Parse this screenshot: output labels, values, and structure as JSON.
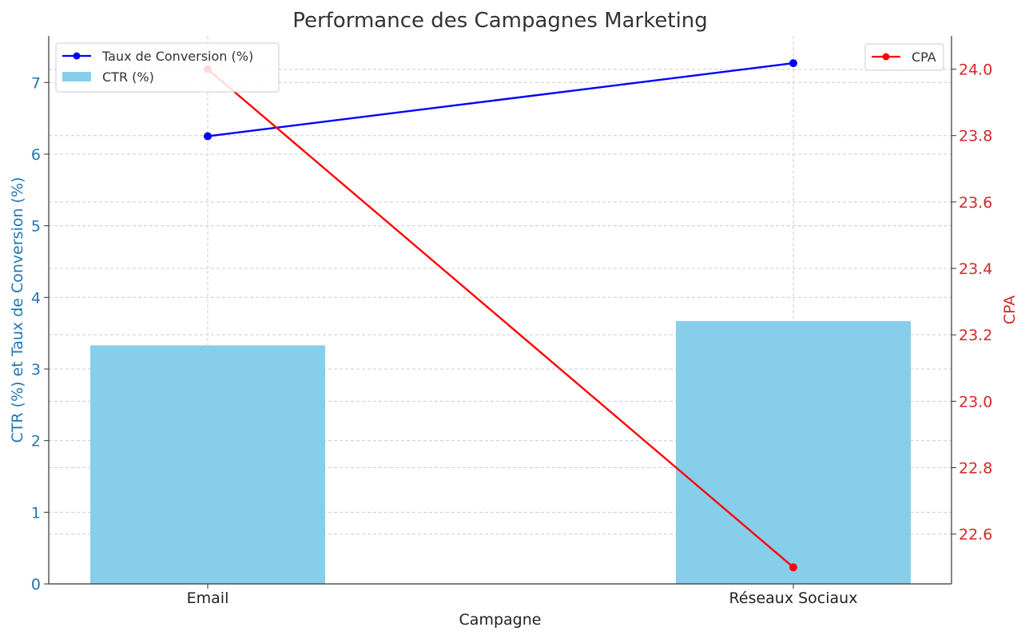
{
  "chart_data": {
    "type": "bar",
    "title": "Performance des Campagnes Marketing",
    "xlabel": "Campagne",
    "ylabel_left": "CTR (%) et Taux de Conversion (%)",
    "ylabel_right": "CPA",
    "categories": [
      "Email",
      "Réseaux Sociaux"
    ],
    "ylim_left": [
      0,
      7.65
    ],
    "ylim_right": [
      22.45,
      24.1
    ],
    "yticks_left": [
      "0",
      "1",
      "2",
      "3",
      "4",
      "5",
      "6",
      "7"
    ],
    "yticks_right": [
      "22.6",
      "22.8",
      "23.0",
      "23.2",
      "23.4",
      "23.6",
      "23.8",
      "24.0"
    ],
    "grid": true,
    "series": [
      {
        "name": "CTR (%)",
        "kind": "bar",
        "axis": "left",
        "color": "#87ceeb",
        "values": [
          3.33,
          3.67
        ]
      },
      {
        "name": "Taux de Conversion (%)",
        "kind": "line",
        "axis": "left",
        "color": "#0000ff",
        "values": [
          6.25,
          7.27
        ]
      },
      {
        "name": "CPA",
        "kind": "line",
        "axis": "right",
        "color": "#ff0000",
        "values": [
          24.0,
          22.5
        ]
      }
    ],
    "legends": [
      {
        "placement": "top-left",
        "entries": [
          "Taux de Conversion (%)",
          "CTR (%)"
        ]
      },
      {
        "placement": "top-right",
        "entries": [
          "CPA"
        ]
      }
    ]
  }
}
